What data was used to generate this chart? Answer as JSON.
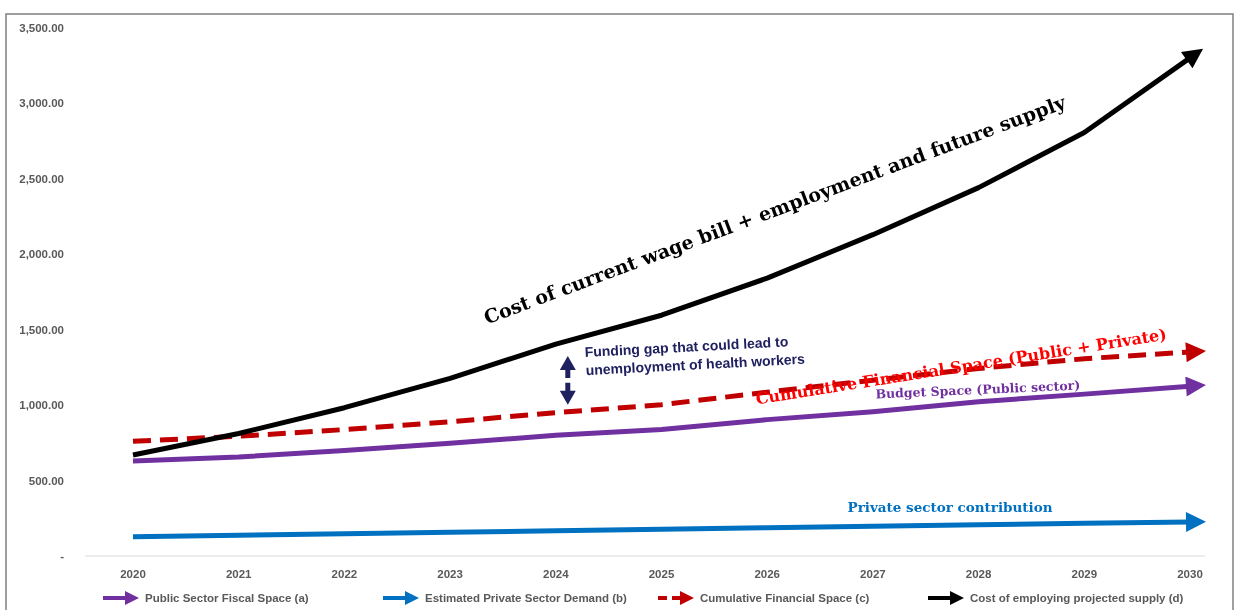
{
  "chart_data": {
    "type": "line",
    "categories": [
      "2020",
      "2021",
      "2022",
      "2023",
      "2024",
      "2025",
      "2026",
      "2027",
      "2028",
      "2029",
      "2030"
    ],
    "series": [
      {
        "name": "Public Sector Fiscal Space (a)",
        "color": "#7030a0",
        "values": [
          630,
          656,
          700,
          747,
          800,
          838,
          904,
          956,
          1022,
          1073,
          1125
        ]
      },
      {
        "name": "Estimated Private Sector Demand (b)",
        "color": "#0070c0",
        "values": [
          127,
          137,
          147,
          157,
          167,
          177,
          187,
          197,
          207,
          217,
          226
        ]
      },
      {
        "name": "Cumulative Financial Space (c)",
        "color": "#c00000",
        "line_style": "dashed",
        "values": [
          760,
          794,
          838,
          890,
          950,
          1003,
          1086,
          1165,
          1243,
          1308,
          1352
        ]
      },
      {
        "name": "Cost of employing projected supply (d)",
        "color": "#000000",
        "values": [
          670,
          812,
          983,
          1178,
          1405,
          1596,
          1842,
          2130,
          2442,
          2807,
          3302
        ]
      }
    ],
    "ylim": [
      0,
      3500
    ],
    "yticks": [
      {
        "value": 0,
        "label": "-"
      },
      {
        "value": 500,
        "label": "500.00"
      },
      {
        "value": 1000,
        "label": "1,000.00"
      },
      {
        "value": 1500,
        "label": "1,500.00"
      },
      {
        "value": 2000,
        "label": "2,000.00"
      },
      {
        "value": 2500,
        "label": "2,500.00"
      },
      {
        "value": 3000,
        "label": "3,000.00"
      },
      {
        "value": 3500,
        "label": "3,500.00"
      }
    ],
    "grid": false,
    "marker": "none",
    "legend": "bottom",
    "annotations": [
      "Cost of current wage bill + employment and future supply",
      "Funding gap that could lead to\nunemployment of health workers",
      "Cumulative Financial Space (Public + Private)",
      "Budget Space (Public sector)",
      "Private sector contribution"
    ]
  }
}
